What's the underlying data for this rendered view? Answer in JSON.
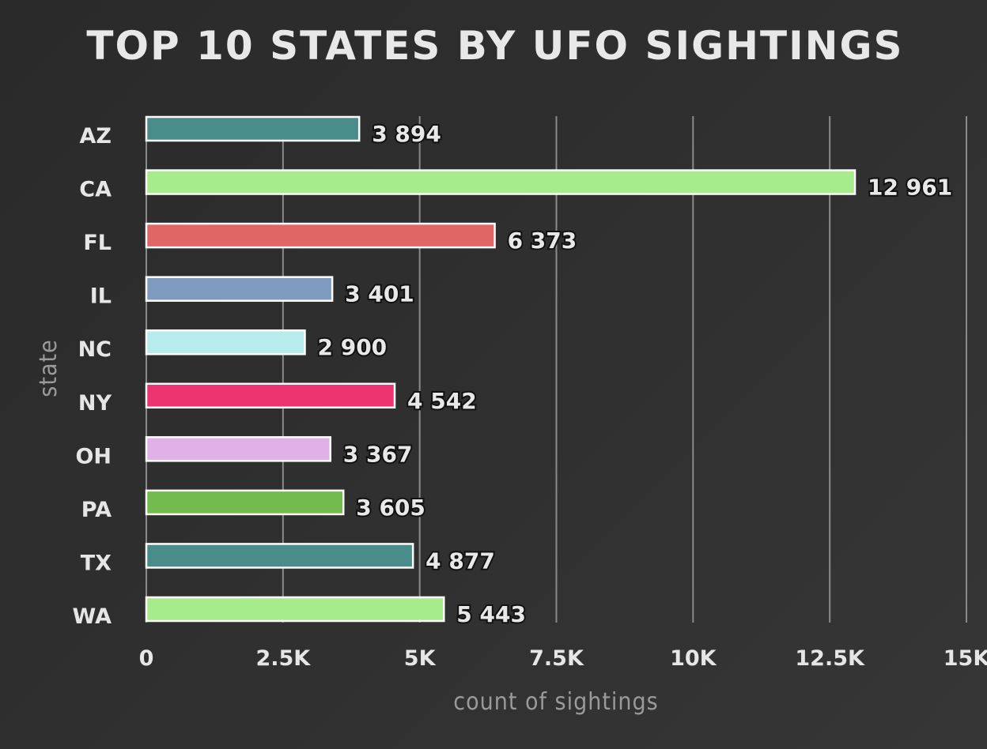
{
  "chart_data": {
    "type": "bar",
    "orientation": "horizontal",
    "title": "TOP 10 STATES BY UFO SIGHTINGS",
    "xlabel": "count of sightings",
    "ylabel": "state",
    "categories": [
      "AZ",
      "CA",
      "FL",
      "IL",
      "NC",
      "NY",
      "OH",
      "PA",
      "TX",
      "WA"
    ],
    "values": [
      3894,
      12961,
      6373,
      3401,
      2900,
      4542,
      3367,
      3605,
      4877,
      5443
    ],
    "value_labels": [
      "3 894",
      "12 961",
      "6 373",
      "3 401",
      "2 900",
      "4 542",
      "3 367",
      "3 605",
      "4 877",
      "5 443"
    ],
    "colors": [
      "#4a8c8a",
      "#a6eb8c",
      "#e06666",
      "#7e9bbf",
      "#b6ecec",
      "#ec3470",
      "#e2b0e8",
      "#72bb4c",
      "#4a8c8a",
      "#a6eb8c"
    ],
    "x_ticks": [
      0,
      2500,
      5000,
      7500,
      10000,
      12500,
      15000
    ],
    "x_tick_labels": [
      "0",
      "2.5K",
      "5K",
      "7.5K",
      "10K",
      "12.5K",
      "15K"
    ],
    "xlim": [
      0,
      15000
    ],
    "grid": "vertical",
    "legend": "none"
  }
}
